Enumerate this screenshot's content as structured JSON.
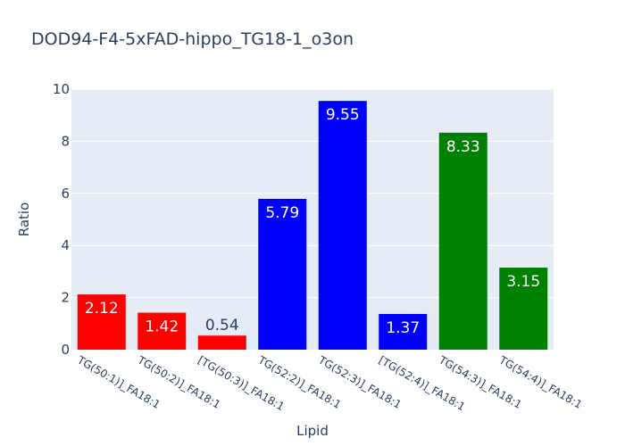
{
  "chart_data": {
    "type": "bar",
    "title": "DOD94-F4-5xFAD-hippo_TG18-1_o3on",
    "xlabel": "Lipid",
    "ylabel": "Ratio",
    "ylim": [
      0,
      10
    ],
    "yticks": [
      0,
      2,
      4,
      6,
      8,
      10
    ],
    "grid": true,
    "categories": [
      "TG(50:1)]_FA18:1",
      "TG(50:2)]_FA18:1",
      "[TG(50:3)]_FA18:1",
      "TG(52:2)]_FA18:1",
      "TG(52:3)]_FA18:1",
      "[TG(52:4)]_FA18:1",
      "TG(54:3)]_FA18:1",
      "TG(54:4)]_FA18:1"
    ],
    "values": [
      2.12,
      1.42,
      0.54,
      5.79,
      9.55,
      1.37,
      8.33,
      3.15
    ],
    "value_labels": [
      "2.12",
      "1.42",
      "0.54",
      "5.79",
      "9.55",
      "1.37",
      "8.33",
      "3.15"
    ],
    "colors": [
      "#ff0000",
      "#ff0000",
      "#ff0000",
      "#0000ff",
      "#0000ff",
      "#0000ff",
      "#008000",
      "#008000"
    ],
    "plot_background": "#e5ecf6",
    "text_color": "#2a3f5f"
  }
}
